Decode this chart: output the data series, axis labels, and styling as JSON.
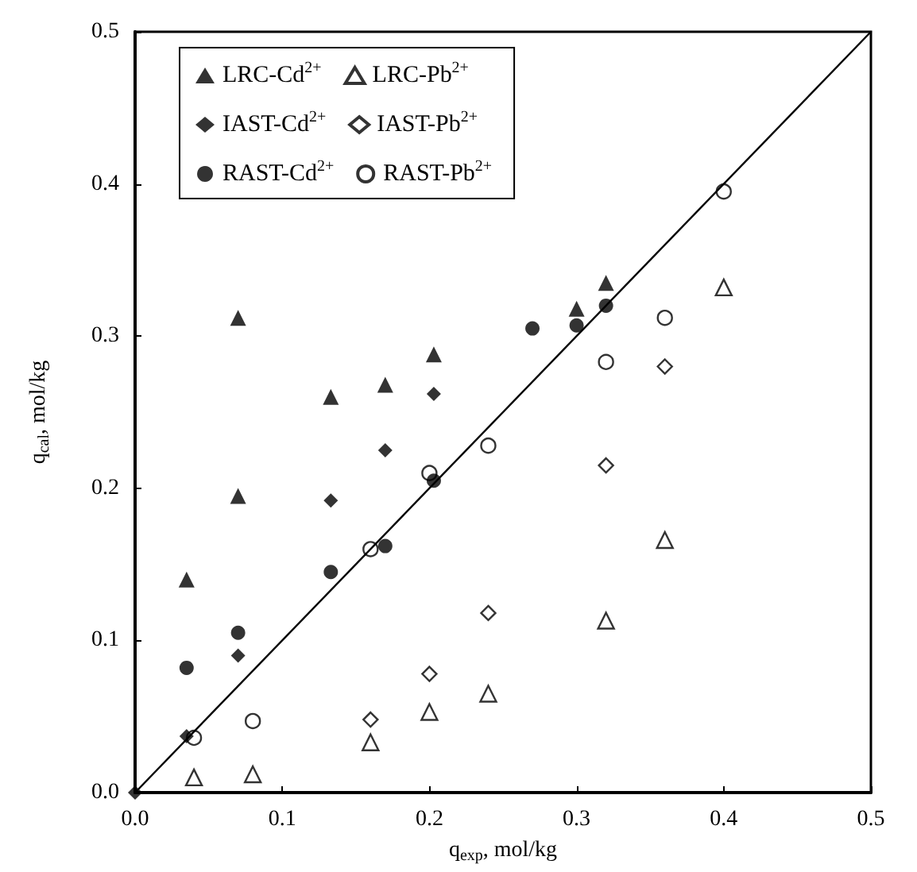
{
  "chart_data": {
    "type": "scatter",
    "xlabel": "q$_{exp}$, mol/kg",
    "ylabel": "q$_{cal}$, mol/kg",
    "xlim": [
      0,
      0.5
    ],
    "ylim": [
      0,
      0.5
    ],
    "xticks": [
      {
        "value": 0,
        "label": "0.0"
      },
      0.1,
      0.2,
      0.3,
      0.4,
      0.5
    ],
    "yticks": [
      {
        "value": 0,
        "label": "0.0"
      },
      0.1,
      0.2,
      0.3,
      0.4,
      0.5
    ],
    "grid": false,
    "legend": "top left",
    "series": [
      {
        "name": "LRC-Cd$^{2+}$",
        "color": "#000000",
        "marker": "triangle",
        "x": [
          0.035,
          0.07,
          0.07,
          0.133,
          0.17,
          0.203,
          0.3,
          0.32
        ],
        "values": [
          0.14,
          0.195,
          0.312,
          0.26,
          0.268,
          0.288,
          0.318,
          0.335
        ]
      },
      {
        "name": "LRC-Pb$^{2+}$",
        "color": "#000000",
        "marker": "triangle-open",
        "x": [
          0.04,
          0.08,
          0.16,
          0.2,
          0.24,
          0.32,
          0.36,
          0.4
        ],
        "values": [
          0.01,
          0.012,
          0.033,
          0.053,
          0.065,
          0.113,
          0.166,
          0.332
        ]
      },
      {
        "name": "IAST-Cd$^{2+}$",
        "color": "#000000",
        "marker": "diamond",
        "x": [
          0,
          0.035,
          0.07,
          0.133,
          0.17,
          0.203
        ],
        "values": [
          0,
          0.037,
          0.09,
          0.192,
          0.225,
          0.262
        ]
      },
      {
        "name": "IAST-Pb$^{2+}$",
        "color": "#000000",
        "marker": "diamond-open",
        "x": [
          0.16,
          0.2,
          0.24,
          0.32,
          0.36
        ],
        "values": [
          0.048,
          0.078,
          0.118,
          0.215,
          0.28
        ]
      },
      {
        "name": "RAST-Cd$^{2+}$",
        "color": "#000000",
        "marker": "circle",
        "x": [
          0.035,
          0.07,
          0.133,
          0.17,
          0.203,
          0.27,
          0.3,
          0.32
        ],
        "values": [
          0.082,
          0.105,
          0.145,
          0.162,
          0.205,
          0.305,
          0.307,
          0.32
        ]
      },
      {
        "name": "RAST-Pb$^{2+}$",
        "color": "#000000",
        "marker": "circle-open",
        "x": [
          0.04,
          0.08,
          0.16,
          0.2,
          0.24,
          0.32,
          0.36,
          0.4
        ],
        "values": [
          0.036,
          0.047,
          0.16,
          0.21,
          0.228,
          0.283,
          0.312,
          0.395
        ]
      },
      {
        "type": "line",
        "color": "#000000",
        "marker": "none",
        "line_style": "solid",
        "x": [
          0,
          0.5
        ],
        "values": [
          0,
          0.5
        ]
      }
    ]
  }
}
